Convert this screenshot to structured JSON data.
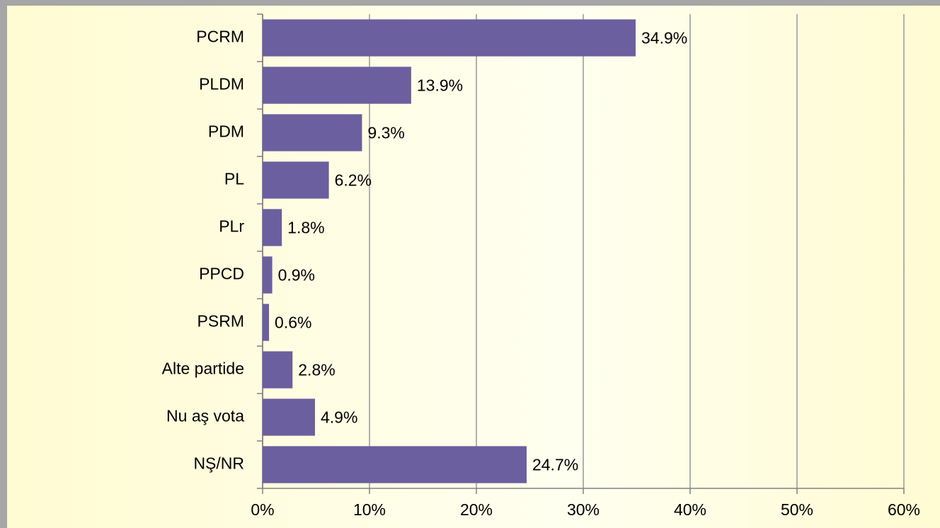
{
  "chart_data": {
    "type": "bar",
    "orientation": "horizontal",
    "categories": [
      "PCRM",
      "PLDM",
      "PDM",
      "PL",
      "PLr",
      "PPCD",
      "PSRM",
      "Alte partide",
      "Nu aş vota",
      "NŞ/NR"
    ],
    "values": [
      34.9,
      13.9,
      9.3,
      6.2,
      1.8,
      0.9,
      0.6,
      2.8,
      4.9,
      24.7
    ],
    "value_labels": [
      "34.9%",
      "13.9%",
      "9.3%",
      "6.2%",
      "1.8%",
      "0.9%",
      "0.6%",
      "2.8%",
      "4.9%",
      "24.7%"
    ],
    "color": "#6b5f9f",
    "xlim": [
      0,
      60
    ],
    "xticks": [
      {
        "value": 0,
        "label": "0%"
      },
      {
        "value": 10,
        "label": "10%"
      },
      {
        "value": 20,
        "label": "20%"
      },
      {
        "value": 30,
        "label": "30%"
      },
      {
        "value": 40,
        "label": "40%"
      },
      {
        "value": 50,
        "label": "50%"
      },
      {
        "value": 60,
        "label": "60%"
      }
    ],
    "grid": true
  }
}
